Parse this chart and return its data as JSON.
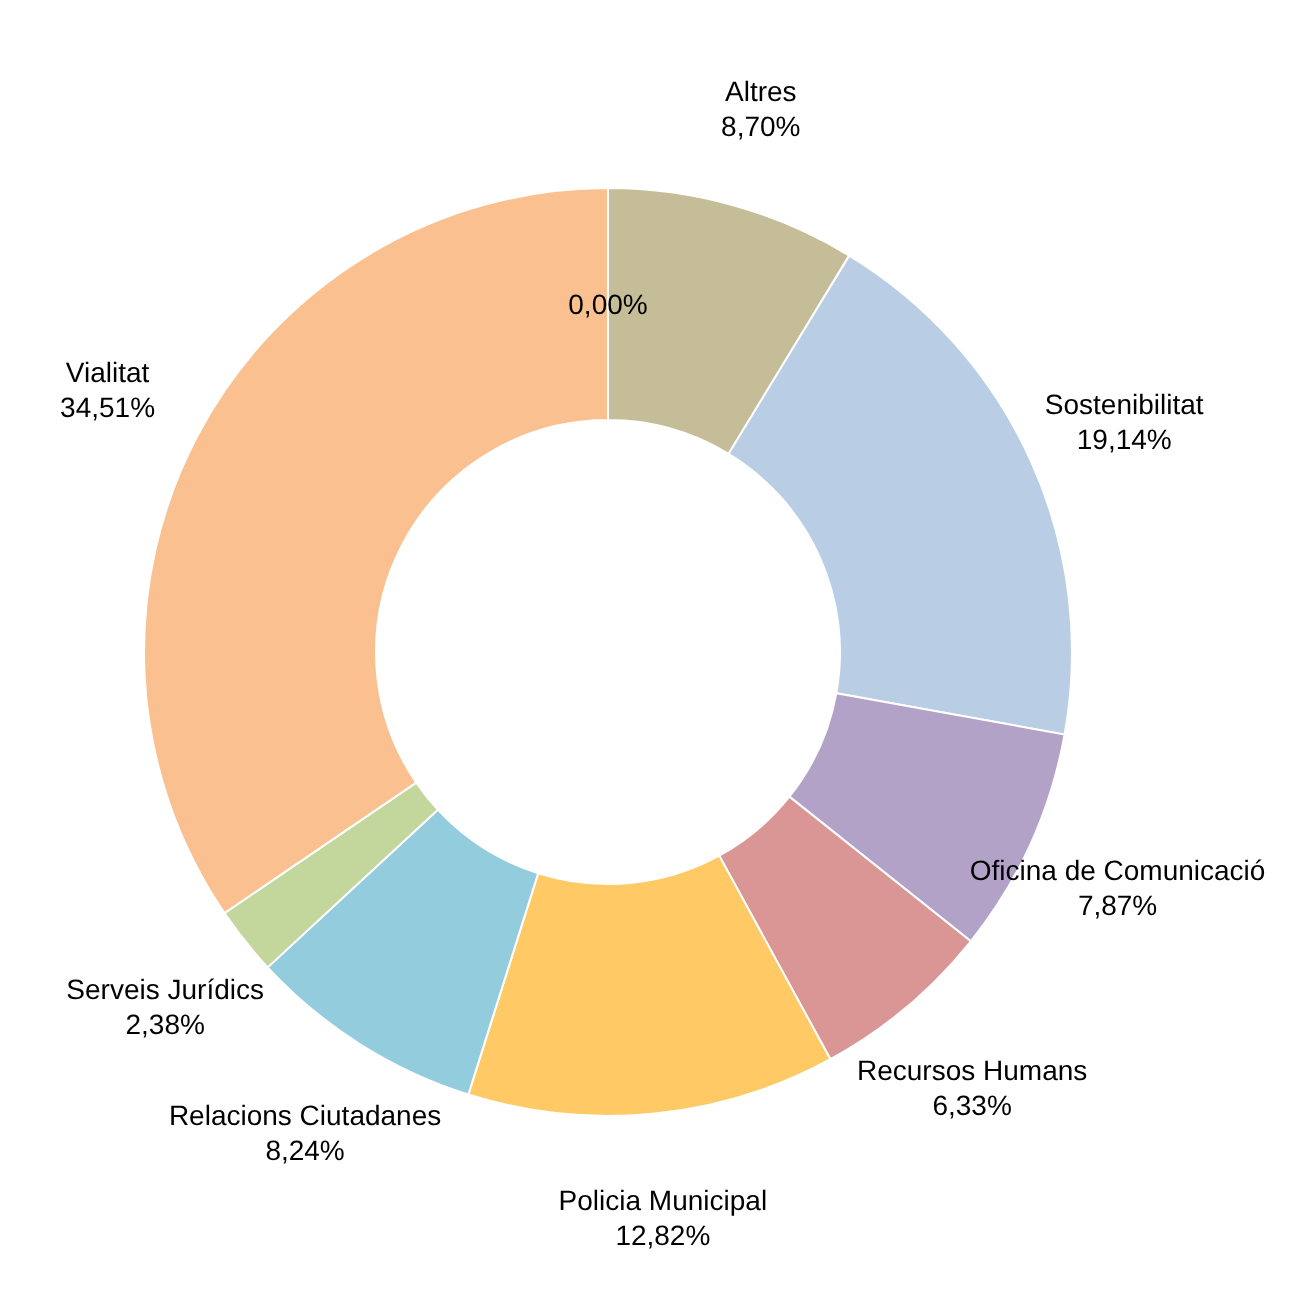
{
  "chart_data": {
    "type": "donut",
    "categories": [
      "Altres",
      "Sostenibilitat",
      "Oficina de Comunicació",
      "Recursos Humans",
      "Policia Municipal",
      "Relacions Ciutadanes",
      "Serveis Jurídics",
      "Vialitat",
      null
    ],
    "values": [
      8.7,
      19.14,
      7.87,
      6.33,
      12.82,
      8.24,
      2.38,
      34.51,
      0
    ],
    "value_labels": [
      "8,70%",
      "19,14%",
      "7,87%",
      "6,33%",
      "12,82%",
      "8,24%",
      "2,38%",
      "34,51%",
      "0,00%"
    ],
    "colors": [
      "#c4bd97",
      "#b9cde5",
      "#b3a2c7",
      "#d99694",
      "#ffc966",
      "#93cddd",
      "#c3d69b",
      "#fac090",
      "#ffffff"
    ]
  }
}
